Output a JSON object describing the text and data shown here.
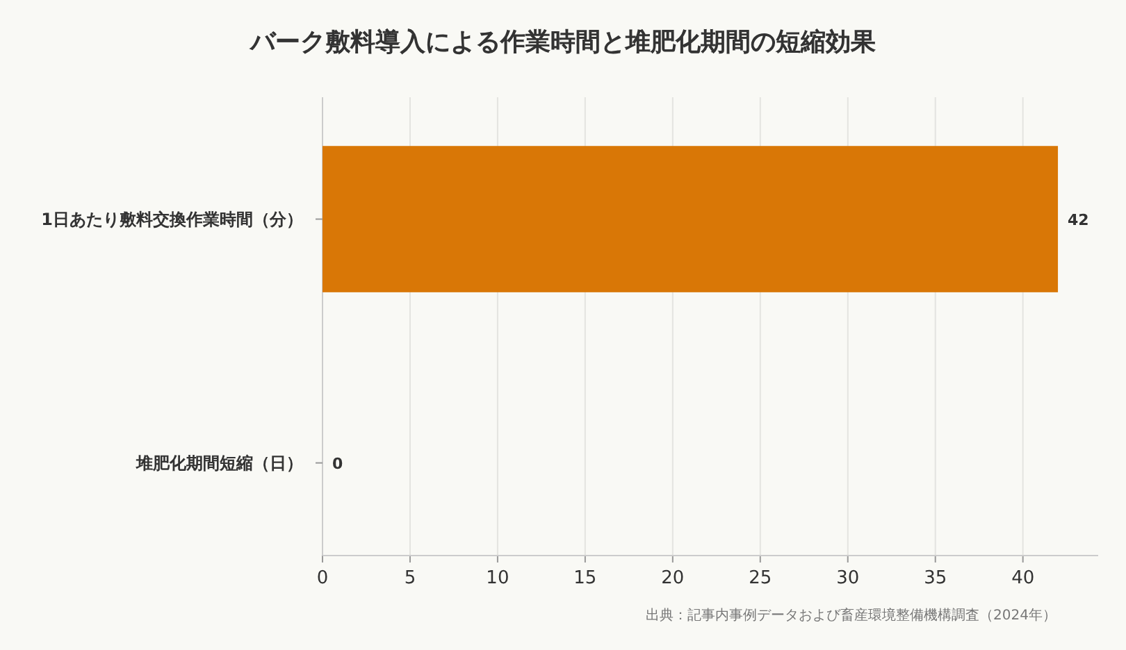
{
  "chart_data": {
    "type": "bar",
    "orientation": "horizontal",
    "title": "バーク敷料導入による作業時間と堆肥化期間の短縮効果",
    "categories": [
      "1日あたり敷料交換作業時間（分）",
      "堆肥化期間短縮（日）"
    ],
    "values": [
      42,
      0
    ],
    "color": "#d97706",
    "xlim": [
      0,
      44.3
    ],
    "xticks": [
      0,
      5,
      10,
      15,
      20,
      25,
      30,
      35,
      40
    ],
    "grid": "x",
    "data_labels": true,
    "annotations": [
      "出典：記事内事例データおよび畜産環境整備機構調査（2024年）"
    ]
  }
}
